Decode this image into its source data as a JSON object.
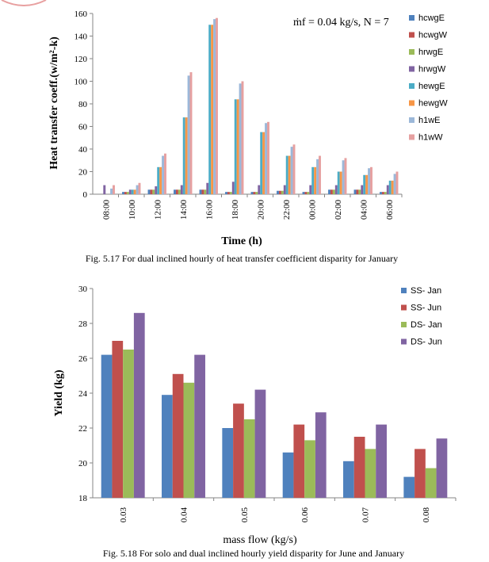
{
  "figures": {
    "fig1_caption": "Fig. 5.17 For dual inclined hourly of heat transfer coefficient disparity for January",
    "fig2_caption": "Fig. 5.18 For solo and dual inclined hourly yield disparity for June and January"
  },
  "chart_data": [
    {
      "type": "bar",
      "title": "",
      "annotation": "ṁf = 0.04 kg/s, N = 7",
      "xlabel": "Time (h)",
      "ylabel": "Heat transfer coeff.(w/m²-k)",
      "ylim": [
        0,
        160
      ],
      "yticks": [
        0,
        20,
        40,
        60,
        80,
        100,
        120,
        140,
        160
      ],
      "categories": [
        "08:00",
        "10:00",
        "12:00",
        "14:00",
        "16:00",
        "18:00",
        "20:00",
        "22:00",
        "00:00",
        "02:00",
        "04:00",
        "06:00"
      ],
      "legend_position": "right",
      "grid": false,
      "series": [
        {
          "name": "hcwgE",
          "color": "#4f81bd",
          "values": [
            0,
            2,
            4,
            4,
            4,
            2,
            2,
            3,
            2,
            4,
            4,
            2
          ]
        },
        {
          "name": "hcwgW",
          "color": "#c0504d",
          "values": [
            0,
            2,
            4,
            4,
            4,
            2,
            2,
            3,
            2,
            4,
            4,
            2
          ]
        },
        {
          "name": "hrwgE",
          "color": "#9bbb59",
          "values": [
            0,
            2,
            4,
            4,
            4,
            2,
            2,
            3,
            2,
            4,
            4,
            2
          ]
        },
        {
          "name": "hrwgW",
          "color": "#8064a2",
          "values": [
            8,
            4,
            7,
            8,
            10,
            11,
            8,
            8,
            8,
            8,
            8,
            8
          ]
        },
        {
          "name": "hewgE",
          "color": "#4bacc6",
          "values": [
            0,
            4,
            24,
            68,
            150,
            84,
            55,
            34,
            24,
            20,
            17,
            12
          ]
        },
        {
          "name": "hewgW",
          "color": "#f79646",
          "values": [
            0,
            4,
            24,
            68,
            150,
            84,
            55,
            34,
            24,
            20,
            17,
            12
          ]
        },
        {
          "name": "h1wE",
          "color": "#9cb8d9",
          "values": [
            5,
            8,
            34,
            105,
            155,
            98,
            63,
            42,
            31,
            30,
            23,
            18
          ]
        },
        {
          "name": "h1wW",
          "color": "#e6a0a0",
          "values": [
            8,
            10,
            36,
            108,
            156,
            100,
            64,
            44,
            34,
            32,
            24,
            20
          ]
        }
      ]
    },
    {
      "type": "bar",
      "title": "",
      "xlabel": "mass flow (kg/s)",
      "ylabel": "Yield (kg)",
      "ylim": [
        18,
        30
      ],
      "yticks": [
        18,
        20,
        22,
        24,
        26,
        28,
        30
      ],
      "categories": [
        "0.03",
        "0.04",
        "0.05",
        "0.06",
        "0.07",
        "0.08"
      ],
      "legend_position": "right",
      "grid": false,
      "series": [
        {
          "name": "SS- Jan",
          "color": "#4f81bd",
          "values": [
            26.2,
            23.9,
            22.0,
            20.6,
            20.1,
            19.2
          ]
        },
        {
          "name": "SS- Jun",
          "color": "#c0504d",
          "values": [
            27.0,
            25.1,
            23.4,
            22.2,
            21.5,
            20.8
          ]
        },
        {
          "name": "DS- Jan",
          "color": "#9bbb59",
          "values": [
            26.5,
            24.6,
            22.5,
            21.3,
            20.8,
            19.7
          ]
        },
        {
          "name": "DS- Jun",
          "color": "#8064a2",
          "values": [
            28.6,
            26.2,
            24.2,
            22.9,
            22.2,
            21.4
          ]
        }
      ]
    }
  ]
}
